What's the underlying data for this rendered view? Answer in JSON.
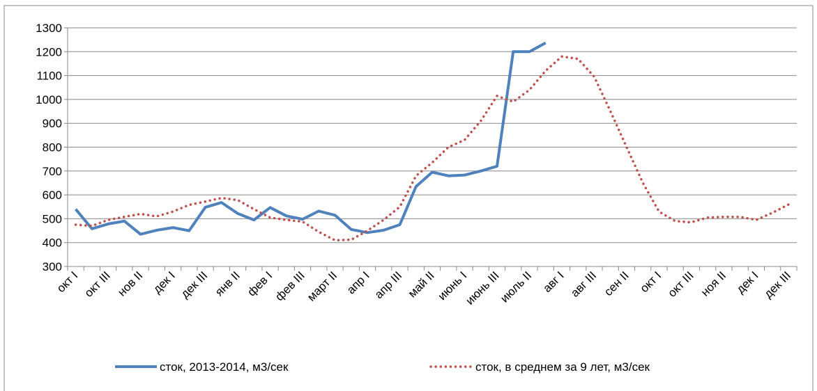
{
  "chart_data": {
    "type": "line",
    "categories": [
      "окт I",
      null,
      "окт III",
      null,
      "нов II",
      null,
      "дек I",
      null,
      "дек III",
      null,
      "янв II",
      null,
      "фев I",
      null,
      "фев III",
      null,
      "март II",
      null,
      "апр I",
      null,
      "апр III",
      null,
      "май II",
      null,
      "июнь I",
      null,
      "июнь III",
      null,
      "июль II",
      null,
      "авг I",
      null,
      "авг III",
      null,
      "сен II",
      null,
      "окт I",
      null,
      "окт III",
      null,
      "ноя II",
      null,
      "дек I",
      null,
      "дек III"
    ],
    "series": [
      {
        "name": "сток, 2013-2014, м3/сек",
        "color": "#4f81bd",
        "style": "solid",
        "values": [
          540,
          458,
          478,
          490,
          435,
          452,
          463,
          450,
          548,
          568,
          522,
          495,
          547,
          512,
          498,
          532,
          515,
          455,
          442,
          452,
          475,
          635,
          695,
          680,
          683,
          700,
          720,
          1200,
          1200,
          1237,
          null,
          null,
          null,
          null,
          null,
          null,
          null,
          null,
          null,
          null,
          null,
          null,
          null,
          null,
          null
        ]
      },
      {
        "name": "сток, в среднем за 9 лет, м3/сек",
        "color": "#c0504d",
        "style": "dotted",
        "values": [
          475,
          470,
          495,
          508,
          520,
          510,
          530,
          558,
          572,
          587,
          578,
          540,
          505,
          495,
          488,
          445,
          410,
          412,
          450,
          495,
          550,
          680,
          735,
          800,
          830,
          910,
          1015,
          990,
          1040,
          1120,
          1180,
          1170,
          1095,
          950,
          800,
          650,
          530,
          490,
          485,
          505,
          508,
          508,
          495,
          525,
          560
        ]
      }
    ],
    "ylim": [
      300,
      1300
    ],
    "yticks": [
      300,
      400,
      500,
      600,
      700,
      800,
      900,
      1000,
      1100,
      1200,
      1300
    ],
    "grid": true,
    "legend": "bottom"
  }
}
